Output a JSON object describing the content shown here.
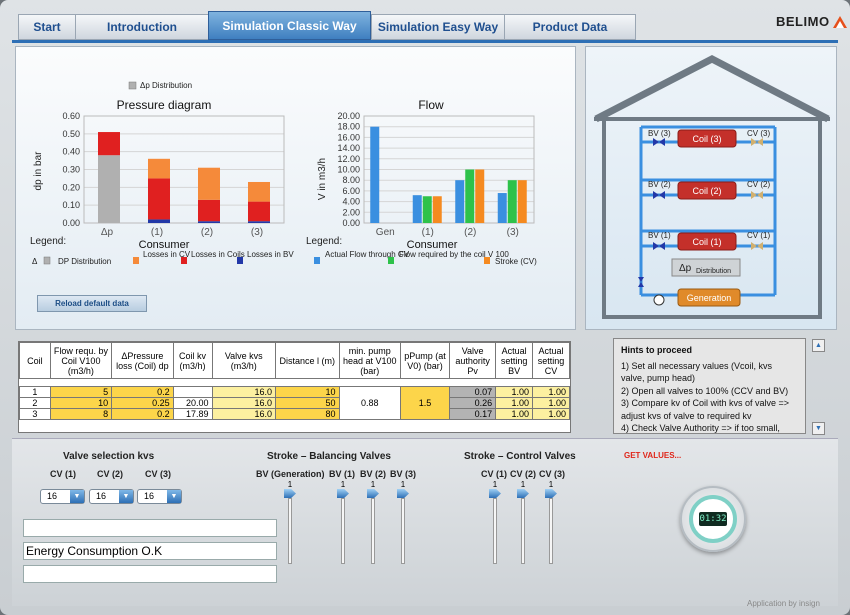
{
  "tabs": [
    "Start",
    "Introduction",
    "Simulation Classic Way",
    "Simulation Easy Way",
    "Product Data"
  ],
  "active_tab": 2,
  "brand": "BELIMO",
  "pressure": {
    "title": "Pressure diagram",
    "ylabel": "dp in bar",
    "xlabel": "Consumer",
    "top_legend": "Δp Distribution",
    "legend_title": "Legend:",
    "legend": [
      "Δ",
      "DP Distribution",
      "Losses in CV",
      "Losses in Coils",
      "Losses in BV"
    ]
  },
  "flow": {
    "title": "Flow",
    "ylabel": "V in m3/h",
    "xlabel": "Consumer",
    "legend_title": "Legend:",
    "legend": [
      "Actual Flow through CV",
      "Flow required by the coil V 100",
      "Stroke (CV)"
    ]
  },
  "chart_data": [
    {
      "type": "bar",
      "title": "Pressure diagram",
      "xlabel": "Consumer",
      "ylabel": "dp in bar",
      "categories": [
        "Δp",
        "(1)",
        "(2)",
        "(3)"
      ],
      "ylim": [
        0,
        0.6
      ],
      "yticks": [
        "0.00",
        "0.10",
        "0.20",
        "0.30",
        "0.40",
        "0.50",
        "0.60"
      ],
      "stacked": true,
      "series": [
        {
          "name": "DP Distribution",
          "color": "#b0b0b0",
          "values": [
            0.38,
            0,
            0,
            0
          ]
        },
        {
          "name": "Losses in BV",
          "color": "#2238a8",
          "values": [
            0,
            0.02,
            0.01,
            0.01
          ]
        },
        {
          "name": "Losses in Coils",
          "color": "#e02020",
          "values": [
            0.13,
            0.23,
            0.12,
            0.11
          ]
        },
        {
          "name": "Losses in CV",
          "color": "#f58a3a",
          "values": [
            0,
            0.11,
            0.18,
            0.11
          ]
        }
      ]
    },
    {
      "type": "bar",
      "title": "Flow",
      "xlabel": "Consumer",
      "ylabel": "V in m3/h",
      "categories": [
        "Gen",
        "(1)",
        "(2)",
        "(3)"
      ],
      "ylim": [
        0,
        20
      ],
      "yticks": [
        "0.00",
        "2.00",
        "4.00",
        "6.00",
        "8.00",
        "10.00",
        "12.00",
        "14.00",
        "16.00",
        "18.00",
        "20.00"
      ],
      "series": [
        {
          "name": "Actual Flow through CV",
          "color": "#3a8fe0",
          "values": [
            18,
            5.2,
            8,
            5.6
          ]
        },
        {
          "name": "Flow required by the coil V 100",
          "color": "#2ec24a",
          "values": [
            0,
            5,
            10,
            8
          ]
        },
        {
          "name": "Stroke (CV)",
          "color": "#f58a20",
          "values": [
            0,
            5,
            10,
            8
          ]
        }
      ]
    }
  ],
  "reload_button": "Reload default data",
  "house": {
    "rows": [
      {
        "bv": "BV (3)",
        "coil": "Coil (3)",
        "cv": "CV (3)"
      },
      {
        "bv": "BV (2)",
        "coil": "Coil (2)",
        "cv": "CV (2)"
      },
      {
        "bv": "BV (1)",
        "coil": "Coil (1)",
        "cv": "CV (1)"
      }
    ],
    "dp_label": "Δp",
    "dp_sub": "Distribution",
    "generation": "Generation"
  },
  "table": {
    "headers": [
      "Coil",
      "Flow requ. by Coil V100 (m3/h)",
      "ΔPressure loss (Coil) dp",
      "Coil kv (m3/h)",
      "Valve kvs (m3/h)",
      "Distance l (m)",
      "min. pump head at V100 (bar)",
      "pPump (at V0) (bar)",
      "Valve authority Pv",
      "Actual setting BV",
      "Actual setting CV"
    ],
    "rows": [
      [
        "1",
        "5",
        "0.2",
        "",
        "16.0",
        "10",
        "",
        "",
        "0.07",
        "1.00",
        "1.00"
      ],
      [
        "2",
        "10",
        "0.25",
        "20.00",
        "16.0",
        "50",
        "0.88",
        "1.5",
        "0.26",
        "1.00",
        "1.00"
      ],
      [
        "3",
        "8",
        "0.2",
        "17.89",
        "16.0",
        "80",
        "",
        "",
        "0.17",
        "1.00",
        "1.00"
      ]
    ]
  },
  "hints": {
    "title": "Hints to proceed",
    "lines": [
      "1) Set all necessary values (Vcoil, kvs valve, pump head)",
      "2) Open all valves to 100% (CCV and BV)",
      "3) Compare kv of Coil with kvs of valve => adjust kvs of valve to required kv",
      "4) Check Valve Authority => if too small,"
    ]
  },
  "valve_selection": {
    "title": "Valve selection kvs",
    "labels": [
      "CV (1)",
      "CV (2)",
      "CV (3)"
    ],
    "values": [
      "16",
      "16",
      "16"
    ]
  },
  "balancing": {
    "title": "Stroke – Balancing Valves",
    "labels": [
      "BV (Generation)",
      "BV (1)",
      "BV (2)",
      "BV (3)"
    ],
    "values": [
      "1",
      "1",
      "1",
      "1"
    ]
  },
  "control": {
    "title": "Stroke – Control Valves",
    "labels": [
      "CV (1)",
      "CV (2)",
      "CV (3)"
    ],
    "values": [
      "1",
      "1",
      "1"
    ]
  },
  "get_values": "GET VALUES...",
  "messages": [
    "",
    "Energy Consumption O.K",
    ""
  ],
  "clock": "01:32",
  "watermark": "Application by insign"
}
